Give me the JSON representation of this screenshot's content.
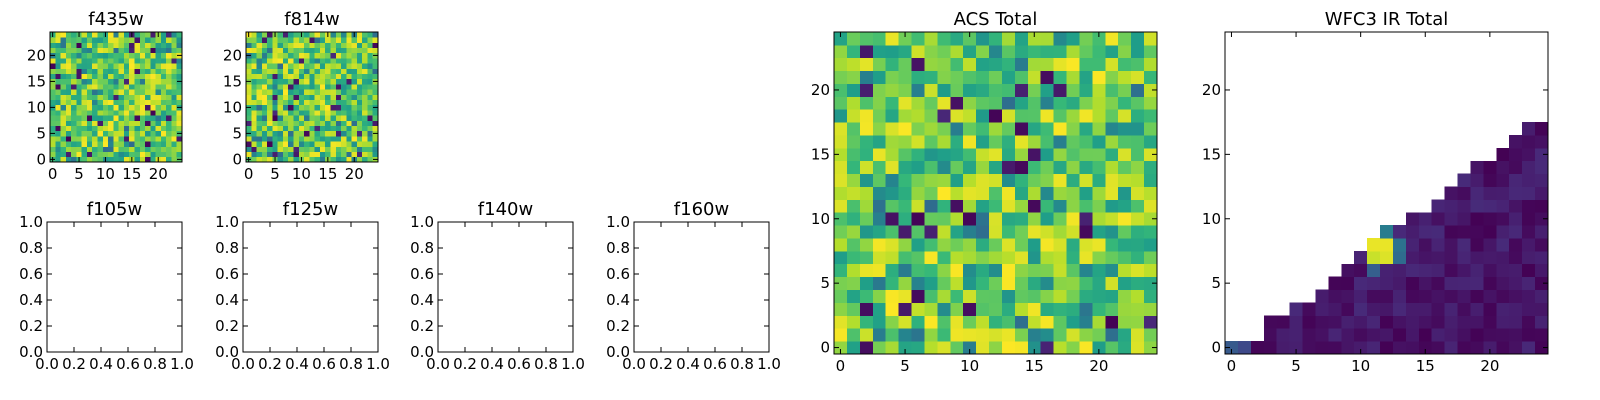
{
  "figure": {
    "background": "#ffffff"
  },
  "chart_data": [
    {
      "type": "heatmap",
      "title": "f435w",
      "xlim": [
        -0.5,
        24.5
      ],
      "ylim": [
        -0.5,
        24.5
      ],
      "xticks": [
        0,
        5,
        10,
        15,
        20
      ],
      "yticks": [
        0,
        5,
        10,
        15,
        20
      ],
      "xtick_labels": [
        "0",
        "5",
        "10",
        "15",
        "20"
      ],
      "ytick_labels": [
        "0",
        "5",
        "10",
        "15",
        "20"
      ],
      "grid": false,
      "colormap": "viridis",
      "grid_size": 25,
      "pattern": "random",
      "seed": 11,
      "value_range": [
        0.15,
        1.0
      ],
      "description_of_values": "25x25 pixel image, mostly green-yellow noise with a few dark pixels"
    },
    {
      "type": "heatmap",
      "title": "f814w",
      "xlim": [
        -0.5,
        24.5
      ],
      "ylim": [
        -0.5,
        24.5
      ],
      "xticks": [
        0,
        5,
        10,
        15,
        20
      ],
      "yticks": [
        0,
        5,
        10,
        15,
        20
      ],
      "xtick_labels": [
        "0",
        "5",
        "10",
        "15",
        "20"
      ],
      "ytick_labels": [
        "0",
        "5",
        "10",
        "15",
        "20"
      ],
      "grid": false,
      "colormap": "viridis",
      "grid_size": 25,
      "pattern": "random",
      "seed": 23,
      "value_range": [
        0.15,
        1.0
      ]
    },
    {
      "type": "empty",
      "title": "f105w",
      "xlim": [
        0,
        1
      ],
      "ylim": [
        0,
        1
      ],
      "xticks": [
        0,
        0.2,
        0.4,
        0.6,
        0.8,
        1.0
      ],
      "yticks": [
        0,
        0.2,
        0.4,
        0.6,
        0.8,
        1.0
      ],
      "xtick_labels": [
        "0.0",
        "0.2",
        "0.4",
        "0.6",
        "0.8",
        "1.0"
      ],
      "ytick_labels": [
        "0.0",
        "0.2",
        "0.4",
        "0.6",
        "0.8",
        "1.0"
      ]
    },
    {
      "type": "empty",
      "title": "f125w",
      "xlim": [
        0,
        1
      ],
      "ylim": [
        0,
        1
      ],
      "xticks": [
        0,
        0.2,
        0.4,
        0.6,
        0.8,
        1.0
      ],
      "yticks": [
        0,
        0.2,
        0.4,
        0.6,
        0.8,
        1.0
      ],
      "xtick_labels": [
        "0.0",
        "0.2",
        "0.4",
        "0.6",
        "0.8",
        "1.0"
      ],
      "ytick_labels": [
        "0.0",
        "0.2",
        "0.4",
        "0.6",
        "0.8",
        "1.0"
      ]
    },
    {
      "type": "empty",
      "title": "f140w",
      "xlim": [
        0,
        1
      ],
      "ylim": [
        0,
        1
      ],
      "xticks": [
        0,
        0.2,
        0.4,
        0.6,
        0.8,
        1.0
      ],
      "yticks": [
        0,
        0.2,
        0.4,
        0.6,
        0.8,
        1.0
      ],
      "xtick_labels": [
        "0.0",
        "0.2",
        "0.4",
        "0.6",
        "0.8",
        "1.0"
      ],
      "ytick_labels": [
        "0.0",
        "0.2",
        "0.4",
        "0.6",
        "0.8",
        "1.0"
      ]
    },
    {
      "type": "empty",
      "title": "f160w",
      "xlim": [
        0,
        1
      ],
      "ylim": [
        0,
        1
      ],
      "xticks": [
        0,
        0.2,
        0.4,
        0.6,
        0.8,
        1.0
      ],
      "yticks": [
        0,
        0.2,
        0.4,
        0.6,
        0.8,
        1.0
      ],
      "xtick_labels": [
        "0.0",
        "0.2",
        "0.4",
        "0.6",
        "0.8",
        "1.0"
      ],
      "ytick_labels": [
        "0.0",
        "0.2",
        "0.4",
        "0.6",
        "0.8",
        "1.0"
      ]
    },
    {
      "type": "heatmap",
      "title": "ACS Total",
      "xlim": [
        -0.5,
        24.5
      ],
      "ylim": [
        -0.5,
        24.5
      ],
      "xticks": [
        0,
        5,
        10,
        15,
        20
      ],
      "yticks": [
        0,
        5,
        10,
        15,
        20
      ],
      "xtick_labels": [
        "0",
        "5",
        "10",
        "15",
        "20"
      ],
      "ytick_labels": [
        "0",
        "5",
        "10",
        "15",
        "20"
      ],
      "grid": false,
      "colormap": "viridis",
      "grid_size": 25,
      "pattern": "random",
      "seed": 37,
      "value_range": [
        0.25,
        1.0
      ]
    },
    {
      "type": "heatmap",
      "title": "WFC3 IR Total",
      "xlim": [
        -0.5,
        24.5
      ],
      "ylim": [
        -0.5,
        24.5
      ],
      "xticks": [
        0,
        5,
        10,
        15,
        20
      ],
      "yticks": [
        0,
        5,
        10,
        15,
        20
      ],
      "xtick_labels": [
        "0",
        "5",
        "10",
        "15",
        "20"
      ],
      "ytick_labels": [
        "0",
        "5",
        "10",
        "15",
        "20"
      ],
      "grid": false,
      "colormap": "viridis",
      "grid_size": 25,
      "pattern": "lower-right-triangle",
      "seed": 53,
      "value_range": [
        0.0,
        0.12
      ],
      "hotspots": [
        {
          "x": 11,
          "y": 8,
          "value": 0.97
        },
        {
          "x": 12,
          "y": 8,
          "value": 0.97
        },
        {
          "x": 11,
          "y": 7,
          "value": 0.92
        },
        {
          "x": 12,
          "y": 7,
          "value": 0.95
        },
        {
          "x": 12,
          "y": 9,
          "value": 0.42
        },
        {
          "x": 13,
          "y": 8,
          "value": 0.38
        },
        {
          "x": 13,
          "y": 7,
          "value": 0.35
        },
        {
          "x": 11,
          "y": 6,
          "value": 0.3
        },
        {
          "x": 0,
          "y": 0,
          "value": 0.28
        },
        {
          "x": 1,
          "y": 0,
          "value": 0.22
        },
        {
          "x": 3,
          "y": 2,
          "value": 0.02
        },
        {
          "x": 9,
          "y": 6,
          "value": 0.04
        }
      ]
    }
  ]
}
